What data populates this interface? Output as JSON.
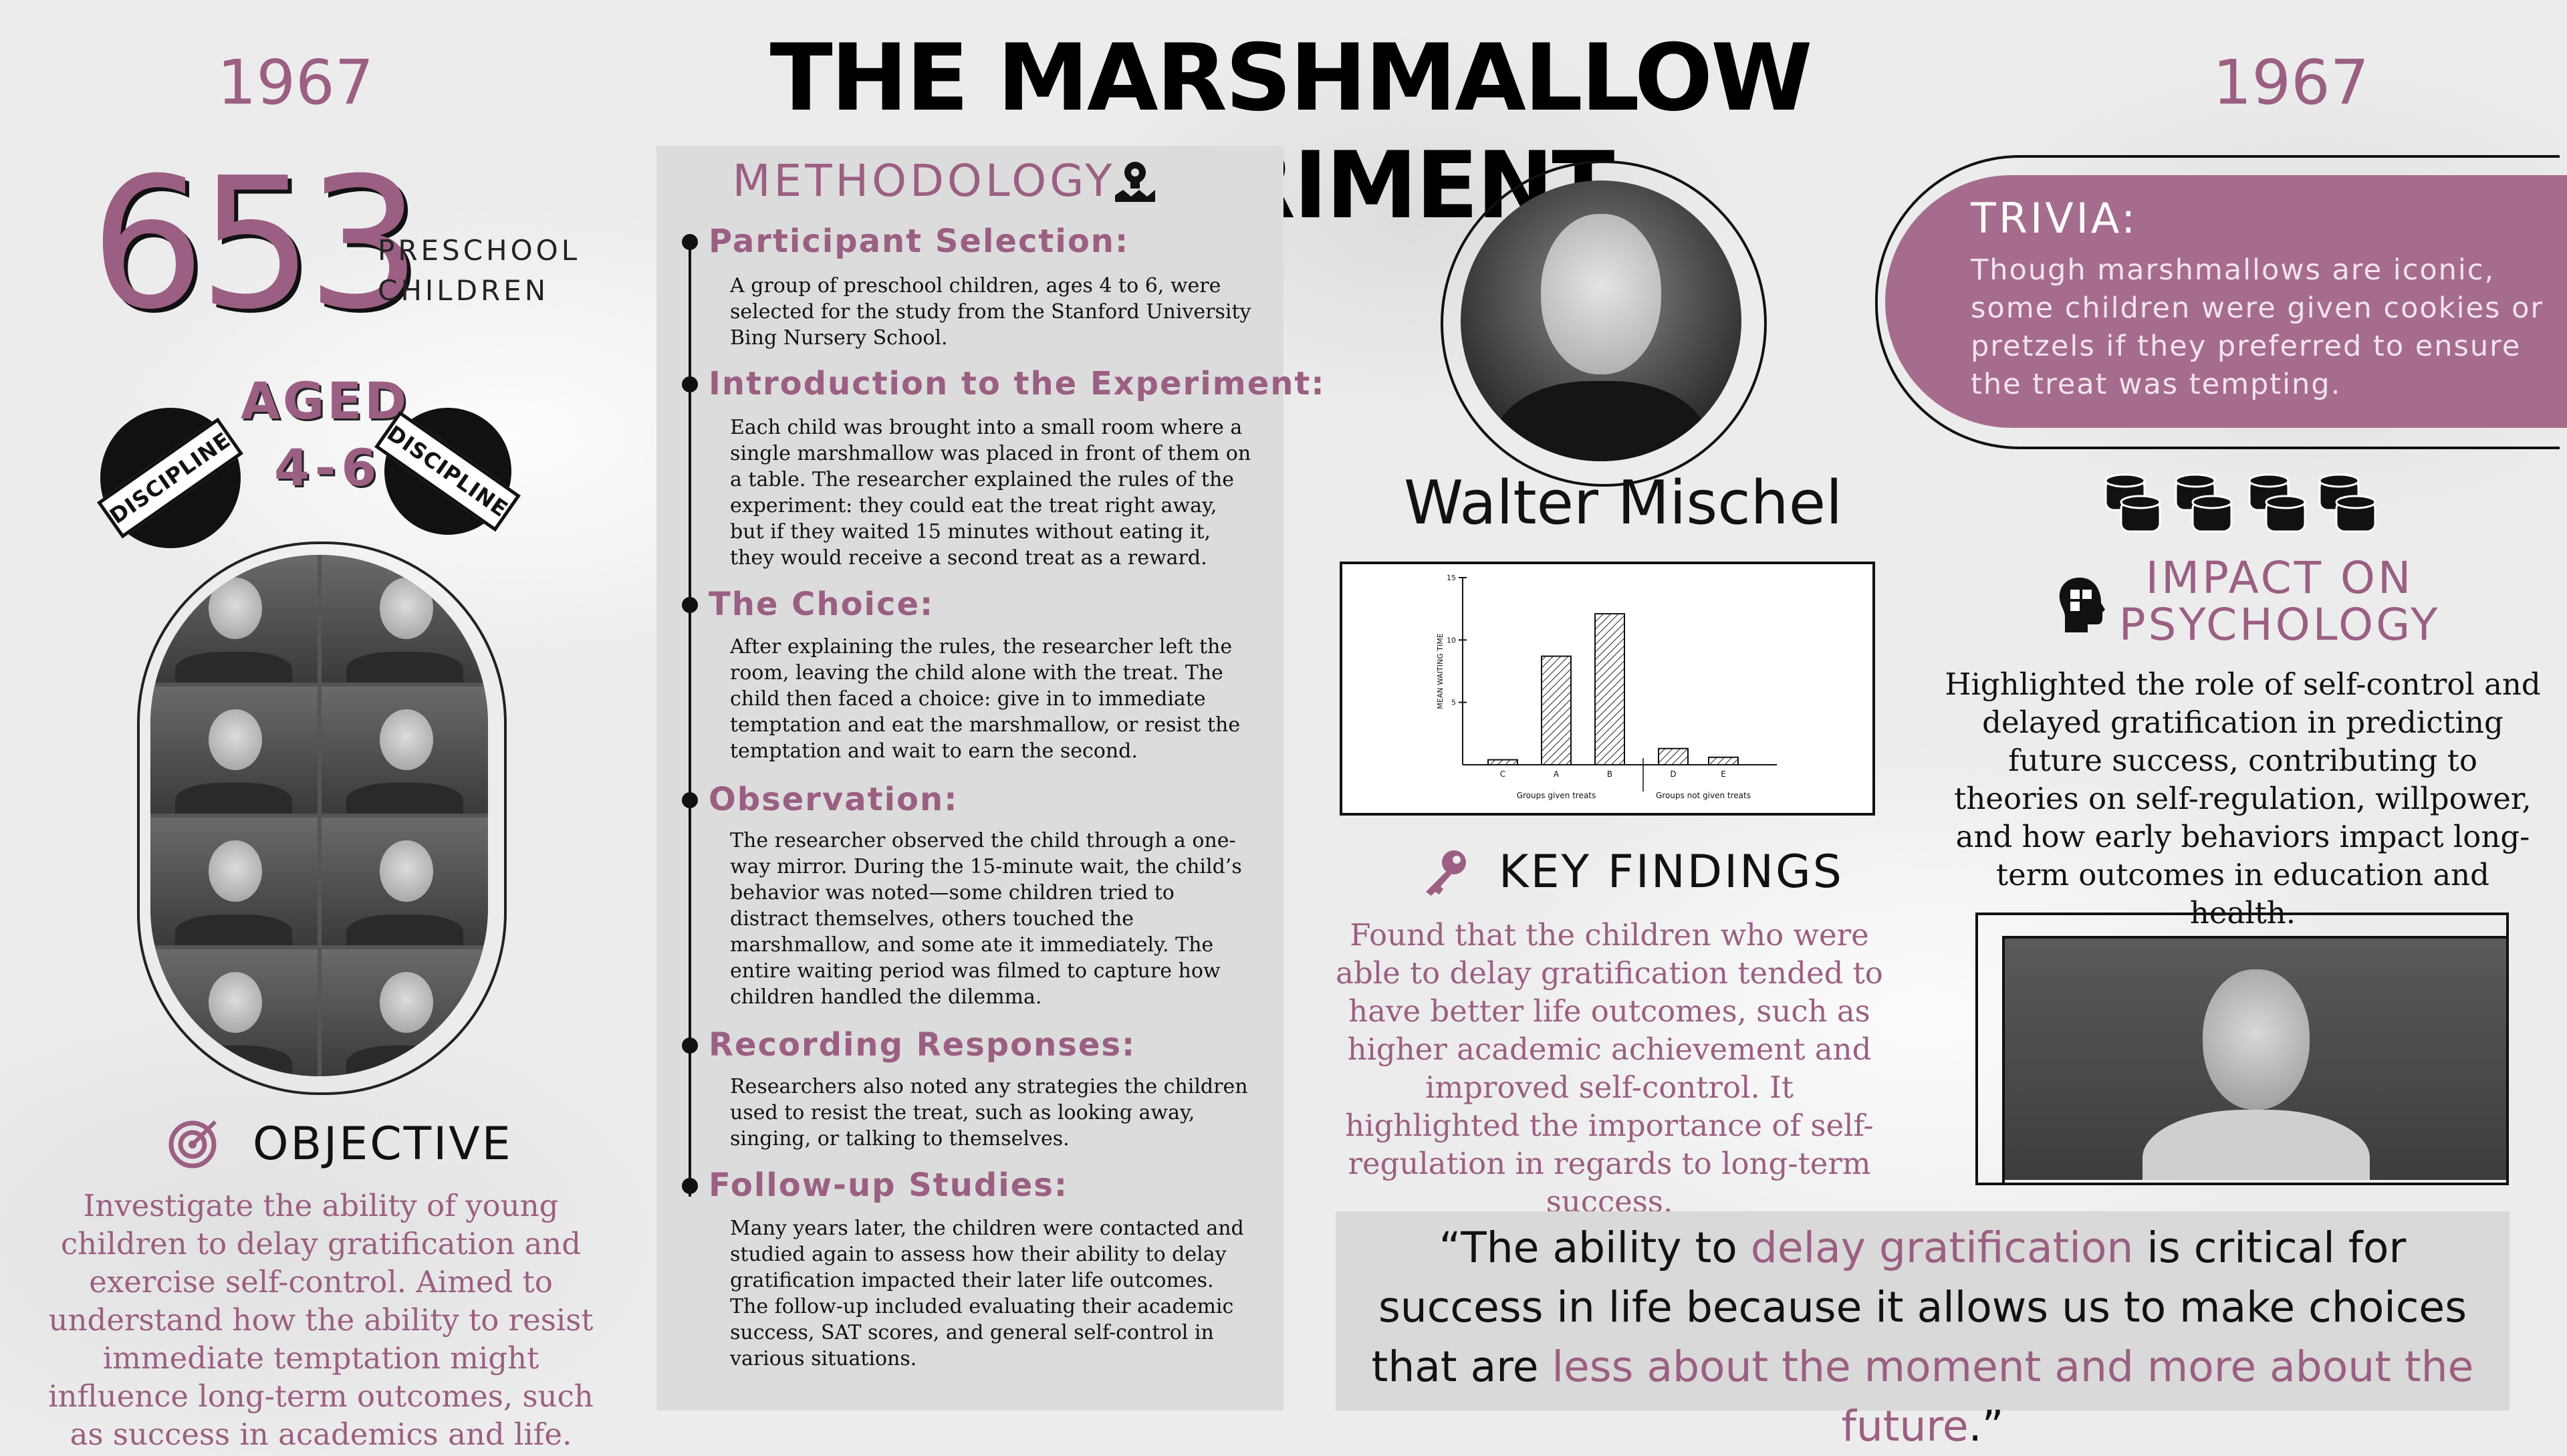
{
  "header": {
    "year_left": "1967",
    "title": "THE MARSHMALLOW EXPERIMENT",
    "year_right": "1967"
  },
  "stats": {
    "count": "653",
    "count_label_line1": "PRESCHOOL",
    "count_label_line2": "CHILDREN",
    "aged_label": "AGED",
    "age_range": "4-6",
    "stamp_text": "DISCIPLINE"
  },
  "objective": {
    "title": "OBJECTIVE",
    "text": "Investigate the ability of young children to delay gratification and exercise self-control. Aimed to understand how the ability to resist immediate temptation might influence long-term outcomes, such as success in academics and life."
  },
  "methodology": {
    "title": "METHODOLOGY",
    "steps": [
      {
        "title": "Participant Selection:",
        "text": "A group of preschool children, ages 4 to 6, were selected for the study from the Stanford University Bing Nursery School."
      },
      {
        "title": "Introduction to the Experiment:",
        "text": "Each child was brought into a small room where a single marshmallow was placed in front of them on a table. The researcher explained the rules of the experiment: they could eat the treat right away, but if they waited 15 minutes without eating it, they would receive a second treat as a reward."
      },
      {
        "title": "The Choice:",
        "text": "After explaining the rules, the researcher left the room, leaving the child alone with the treat. The child then faced a choice: give in to immediate temptation and eat the marshmallow, or resist the temptation and wait to earn the second."
      },
      {
        "title": "Observation:",
        "text": "The researcher observed the child through a one-way mirror. During the 15-minute wait, the child’s behavior was noted—some children tried to distract themselves, others touched the marshmallow, and some ate it immediately. The entire waiting period was filmed to capture how children handled the dilemma."
      },
      {
        "title": "Recording Responses:",
        "text": "Researchers also noted any strategies the children used to resist the treat, such as looking away, singing, or talking to themselves."
      },
      {
        "title": "Follow-up Studies:",
        "text": "Many years later, the children were contacted and studied again to assess how their ability to delay gratification impacted their later life outcomes. The follow-up included evaluating their academic success, SAT scores, and general self-control in various situations."
      }
    ]
  },
  "researcher": {
    "name": "Walter Mischel"
  },
  "chart_data": {
    "type": "bar",
    "categories": [
      "C",
      "A",
      "B",
      "D",
      "E"
    ],
    "values": [
      0.4,
      8.7,
      12.1,
      1.3,
      0.6
    ],
    "ylabel": "MEAN WAITING TIME",
    "ylim": [
      0,
      15
    ],
    "yticks": [
      "5",
      "10",
      "15"
    ],
    "groups": [
      {
        "label": "Groups given treats",
        "categories": [
          "C",
          "A",
          "B"
        ]
      },
      {
        "label": "Groups not given treats",
        "categories": [
          "D",
          "E"
        ]
      }
    ],
    "bar_pattern": "hatched"
  },
  "findings": {
    "title": "KEY FINDINGS",
    "text": "Found that the children who were able to delay gratification tended to have better life outcomes, such as higher academic achievement and improved self-control. It highlighted the importance of self-regulation in regards to long-term success."
  },
  "trivia": {
    "title": "TRIVIA:",
    "text": "Though marshmallows are iconic, some children were given cookies or pretzels if they preferred to ensure the treat was tempting."
  },
  "impact": {
    "title_line1": "IMPACT ON",
    "title_line2": "PSYCHOLOGY",
    "text": "Highlighted the role of self-control and delayed gratification in predicting future success, contributing to theories on self-regulation, willpower, and how early behaviors impact long-term outcomes in education and health."
  },
  "quote": {
    "open": "“The ability to ",
    "highlight1": "delay gratification",
    "middle": " is critical for success in life because it allows us to make choices that are ",
    "highlight2": "less about the moment and more about the future",
    "close": ".”"
  },
  "colors": {
    "accent": "#9b5f83",
    "trivia_fill": "#a66c8d",
    "text": "#111111"
  }
}
